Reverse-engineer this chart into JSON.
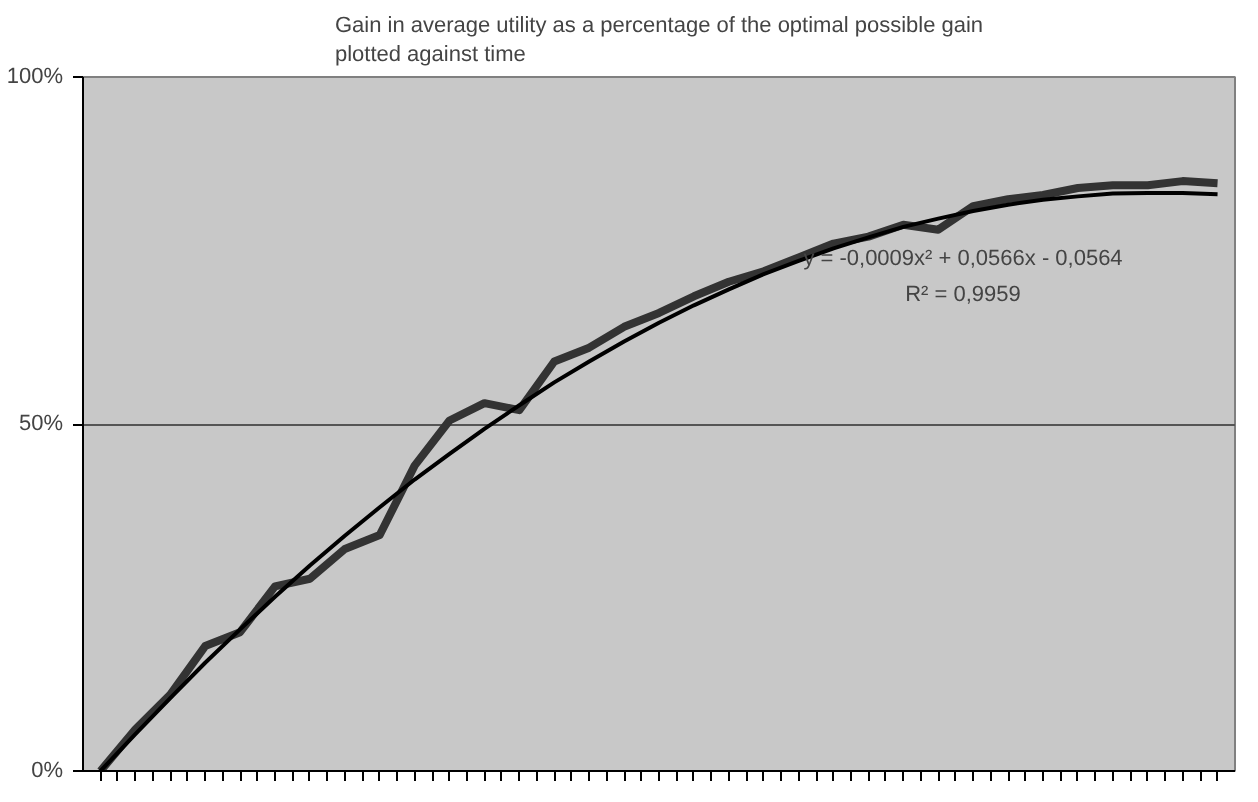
{
  "chart_data": {
    "type": "line",
    "title": "Gain in average utility as a percentage of the optimal possible gain\nplotted against time",
    "annotations": [
      "y = -0,0009x² + 0,0566x - 0,0564",
      "R² = 0,9959"
    ],
    "categories": [
      null,
      null,
      null,
      null,
      null,
      null,
      null,
      null,
      null,
      null,
      null,
      null,
      null,
      null,
      null,
      null,
      null,
      null,
      null,
      null,
      null,
      null,
      null,
      null,
      null,
      null,
      null,
      null,
      null,
      null,
      null,
      null,
      null
    ],
    "series": [
      {
        "color": "#333333",
        "values": [
          0,
          6,
          11,
          18,
          20,
          26.6,
          27.7,
          32,
          34,
          44,
          50.5,
          53,
          52,
          59,
          61,
          64,
          66,
          68.4,
          70.5,
          72,
          74,
          76,
          77,
          78.7,
          78,
          81.4,
          82.4,
          83,
          84,
          84.4,
          84.4,
          85,
          84.7
        ]
      },
      {
        "type": "line",
        "color": "#000000",
        "values": [
          0,
          5.3,
          10.5,
          15.6,
          20.4,
          25.1,
          29.6,
          33.9,
          38,
          42,
          45.7,
          49.3,
          52.7,
          56,
          59,
          61.9,
          64.6,
          67.1,
          69.4,
          71.6,
          73.5,
          75.3,
          76.9,
          78.4,
          79.6,
          80.7,
          81.6,
          82.3,
          82.8,
          83.2,
          83.3,
          83.3,
          83.1
        ]
      }
    ],
    "ylim": [
      0,
      100
    ],
    "yticks": [
      {
        "value": 0,
        "label": "0%"
      },
      {
        "value": 50,
        "label": "50%"
      },
      {
        "value": 100,
        "label": "100%"
      }
    ],
    "tick_labels": "y",
    "grid": "y",
    "marker": "none",
    "line_style": "solid"
  }
}
